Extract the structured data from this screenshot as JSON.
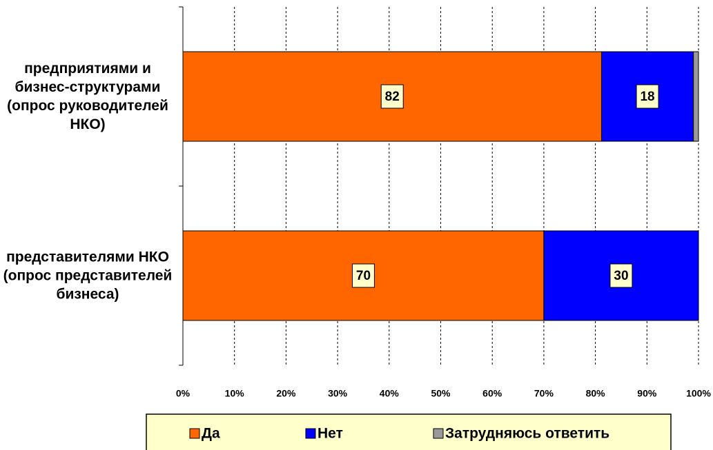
{
  "chart_data": {
    "type": "bar",
    "orientation": "horizontal",
    "stacking": "percent",
    "categories": [
      "предприятиями и бизнес-структурами (опрос руководителей НКО)",
      "представителями НКО (опрос представителей бизнеса)"
    ],
    "series": [
      {
        "name": "Да",
        "color": "#ff6600",
        "values": [
          82,
          70
        ],
        "data_labels": true
      },
      {
        "name": "Нет",
        "color": "#0000ff",
        "values": [
          18,
          30
        ],
        "data_labels": true
      },
      {
        "name": "Затрудняюсь ответить",
        "color": "#999999",
        "values": [
          1,
          0
        ],
        "data_labels": false
      }
    ],
    "xlim": [
      0,
      100
    ],
    "xticks": [
      {
        "value": 0,
        "label": "0%"
      },
      {
        "value": 10,
        "label": "10%"
      },
      {
        "value": 20,
        "label": "20%"
      },
      {
        "value": 30,
        "label": "30%"
      },
      {
        "value": 40,
        "label": "40%"
      },
      {
        "value": 50,
        "label": "50%"
      },
      {
        "value": 60,
        "label": "60%"
      },
      {
        "value": 70,
        "label": "70%"
      },
      {
        "value": 80,
        "label": "80%"
      },
      {
        "value": 90,
        "label": "90%"
      },
      {
        "value": 100,
        "label": "100%"
      }
    ],
    "grid": true,
    "legend": "bottom"
  }
}
